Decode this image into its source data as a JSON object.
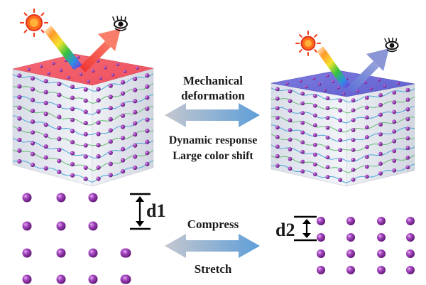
{
  "labels": {
    "mechanical_line1": "Mechanical",
    "mechanical_line2": "deformation",
    "dynamic_line1": "Dynamic response",
    "dynamic_line2": "Large color shift",
    "compress": "Compress",
    "stretch": "Stretch",
    "d1": "d1",
    "d2": "d2"
  },
  "colors": {
    "particle": "#8e2aa8",
    "red_top": "#f0606e",
    "blue_top": "#6d6ad6",
    "cube_side": "#e6e9f1",
    "arrow_gradient_start": "#b9bfc9",
    "arrow_gradient_end": "#5e9ed8",
    "reflected_red": "#f25a4c",
    "reflected_blue": "#7f90d2",
    "sun": "#f23b1c"
  },
  "icons": {
    "sun": "sun-icon",
    "eye": "eye-icon"
  }
}
